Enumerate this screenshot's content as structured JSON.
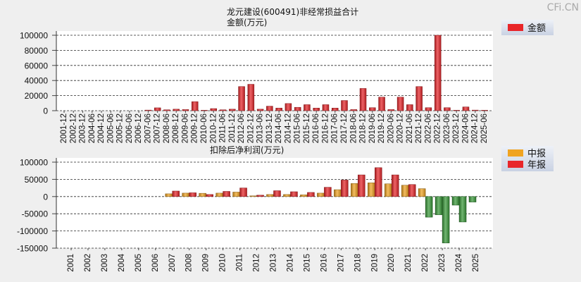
{
  "watermark": "CFi.CN",
  "chart_data": [
    {
      "type": "bar",
      "title": "龙元建设(600491)非经常损益合计",
      "subtitle": "金额(万元)",
      "ylim": [
        0,
        100000
      ],
      "yticks": [
        0,
        20000,
        40000,
        60000,
        80000,
        100000
      ],
      "grid": true,
      "legend": "top-right",
      "categories": [
        "2001-12",
        "2002-12",
        "2003-12",
        "2004-06",
        "2004-12",
        "2005-06",
        "2005-12",
        "2006-06",
        "2006-12",
        "2007-06",
        "2007-12",
        "2008-06",
        "2008-12",
        "2009-06",
        "2009-12",
        "2010-06",
        "2010-12",
        "2011-06",
        "2011-12",
        "2012-06",
        "2012-12",
        "2013-06",
        "2013-12",
        "2014-06",
        "2014-12",
        "2015-06",
        "2015-12",
        "2016-06",
        "2016-12",
        "2017-06",
        "2017-12",
        "2018-06",
        "2018-12",
        "2019-06",
        "2019-12",
        "2020-06",
        "2020-12",
        "2021-06",
        "2021-12",
        "2022-06",
        "2022-12",
        "2023-06",
        "2023-12",
        "2024-06",
        "2024-12",
        "2025-06"
      ],
      "series": [
        {
          "name": "金额",
          "color": "#e8262b",
          "values": [
            null,
            null,
            null,
            null,
            null,
            null,
            null,
            null,
            null,
            800,
            3800,
            1200,
            2000,
            1500,
            12000,
            600,
            2800,
            1200,
            2000,
            32000,
            35000,
            2000,
            6000,
            3500,
            9500,
            4500,
            8000,
            3500,
            8000,
            3500,
            13500,
            1500,
            29500,
            4000,
            18000,
            1500,
            18000,
            8000,
            32000,
            4000,
            100000,
            4000,
            600,
            5000,
            800,
            600
          ]
        }
      ]
    },
    {
      "type": "bar",
      "title": "扣除后净利润(万元)",
      "ylim": [
        -150000,
        100000
      ],
      "yticks": [
        -150000,
        -100000,
        -50000,
        0,
        50000,
        100000
      ],
      "grid": true,
      "legend": "top-right",
      "negative_color": "#3a9a3a",
      "categories": [
        "2001",
        "2002",
        "2003",
        "2004",
        "2005",
        "2006",
        "2007",
        "2008",
        "2009",
        "2010",
        "2011",
        "2012",
        "2013",
        "2014",
        "2015",
        "2016",
        "2017",
        "2018",
        "2019",
        "2020",
        "2021",
        "2022",
        "2023",
        "2024",
        "2025"
      ],
      "series": [
        {
          "name": "中报",
          "color": "#f0a422",
          "values": [
            null,
            null,
            null,
            null,
            null,
            null,
            8000,
            10000,
            9500,
            10000,
            13000,
            2000,
            6000,
            6000,
            5000,
            10000,
            20000,
            38000,
            40000,
            37000,
            33000,
            23000,
            -53000,
            -25000,
            -16000
          ]
        },
        {
          "name": "年报",
          "color": "#e8262b",
          "values": [
            null,
            null,
            null,
            null,
            null,
            null,
            16000,
            11000,
            6000,
            15000,
            25000,
            4000,
            17000,
            14000,
            12000,
            27000,
            48000,
            63000,
            84000,
            63000,
            35000,
            -60000,
            -135000,
            -74000,
            null
          ]
        }
      ]
    }
  ]
}
